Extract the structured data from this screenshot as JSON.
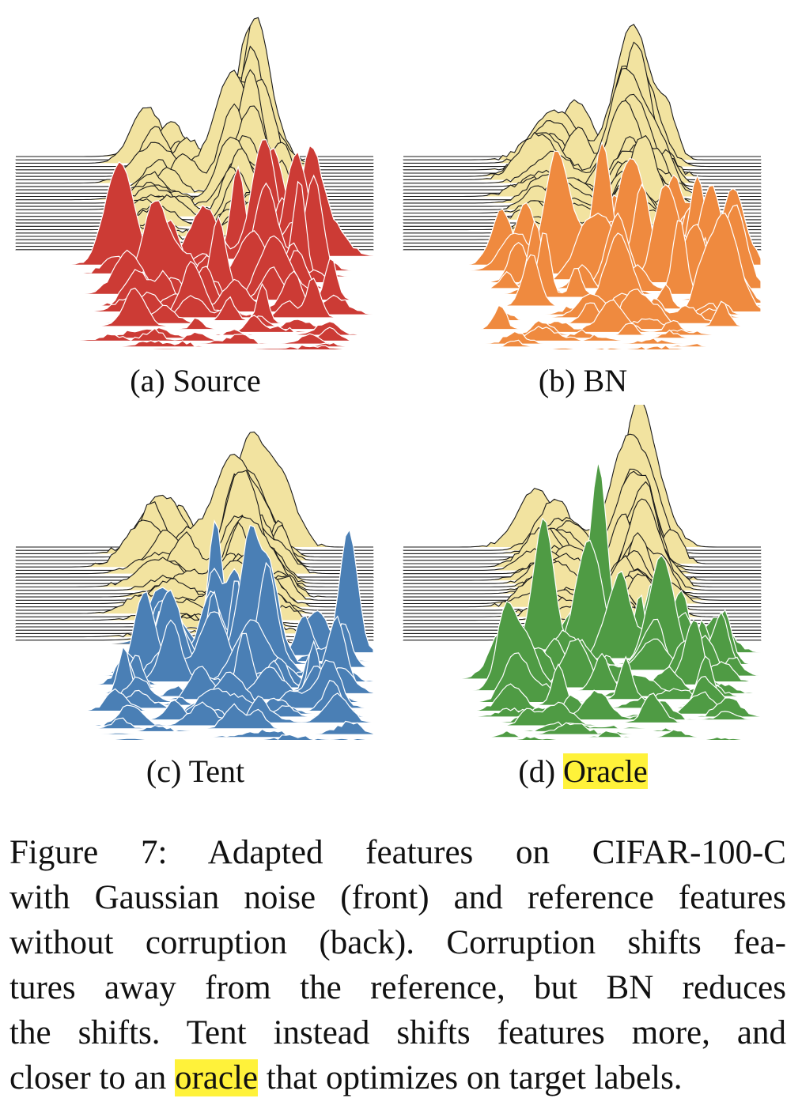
{
  "colors": {
    "reference": "#f2e3a0",
    "reference_stroke": "#1a1a1a",
    "source": "#cc3b35",
    "bn": "#ef8a3f",
    "tent": "#4a7fb5",
    "oracle": "#4f9b44",
    "highlight": "#fff23a"
  },
  "panels": [
    {
      "id": "a",
      "label": "(a)",
      "name": "Source",
      "color_key": "source",
      "highlight": false
    },
    {
      "id": "b",
      "label": "(b)",
      "name": "BN",
      "color_key": "bn",
      "highlight": false
    },
    {
      "id": "c",
      "label": "(c)",
      "name": "Tent",
      "color_key": "tent",
      "highlight": false
    },
    {
      "id": "d",
      "label": "(d)",
      "name": "Oracle",
      "color_key": "oracle",
      "highlight": true
    }
  ],
  "caption": {
    "lines": [
      [
        "Figure 7:  Adapted features on CIFAR-100-C"
      ],
      [
        "with Gaussian noise (front) and reference features"
      ],
      [
        "without corruption (back). Corruption shifts fea-"
      ],
      [
        "tures away from the reference, but BN reduces"
      ],
      [
        "the shifts. Tent instead shifts features more, and"
      ],
      [
        "closer to an ",
        "oracle",
        " that optimizes on target labels."
      ]
    ],
    "highlight_word": "oracle"
  }
}
